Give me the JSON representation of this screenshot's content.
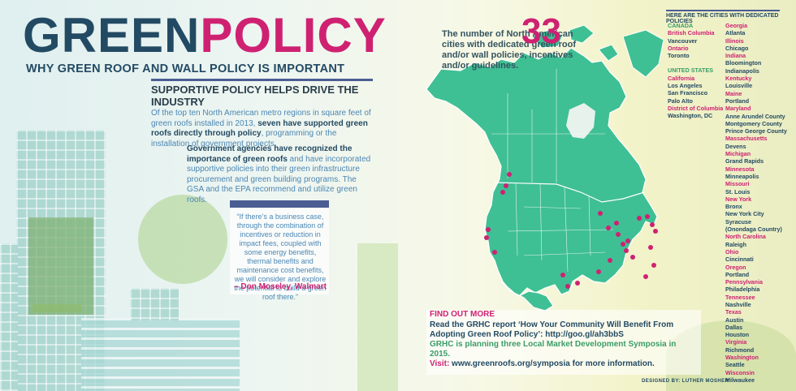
{
  "header": {
    "title_green": "GREEN",
    "title_policy": "POLICY",
    "subtitle": "WHY GREEN ROOF AND WALL POLICY IS IMPORTANT"
  },
  "section": {
    "heading": "SUPPORTIVE POLICY HELPS DRIVE THE INDUSTRY",
    "para1_a": "Of the top ten North American metro regions in square feet of green roofs installed in 2013,",
    "para1_b": "seven have supported green roofs directly through policy",
    "para1_c": ", programming or the installation of government projects.",
    "para2_a": "Government agencies have recognized the importance of green roofs",
    "para2_b": " and have incorporated supportive policies into their green infrastructure procurement and green building programs. The GSA and the EPA recommend and utilize green roofs."
  },
  "quote": {
    "text": "“If there’s a business case, through the combination of incentives or reduction in impact fees, coupled with some energy benefits, thermal benefits and maintenance cost benefits, we will consider and explore the potential to build a green roof there.”",
    "author": "– Don Moseley, Walmart"
  },
  "stat": {
    "number": "33",
    "text": "The number of North American cities with dedicated green roof and/or wall policies, incentives and/or guidelines."
  },
  "cities": {
    "heading": "HERE ARE THE CITIES WITH DEDICATED POLICIES",
    "canada_label": "CANADA",
    "canada": [
      {
        "name": "British Columbia",
        "c": "pink"
      },
      {
        "name": "Vancouver",
        "c": "blue"
      },
      {
        "name": "Ontario",
        "c": "pink"
      },
      {
        "name": "Toronto",
        "c": "blue"
      }
    ],
    "us_label": "UNITED STATES",
    "us_col1": [
      {
        "name": "California",
        "c": "pink"
      },
      {
        "name": "Los Angeles",
        "c": "blue"
      },
      {
        "name": "San Francisco",
        "c": "blue"
      },
      {
        "name": "Palo Alto",
        "c": "blue"
      },
      {
        "name": "District of Columbia",
        "c": "pink"
      },
      {
        "name": "Washington, DC",
        "c": "blue"
      }
    ],
    "us_col2": [
      {
        "name": "Georgia",
        "c": "pink"
      },
      {
        "name": "Atlanta",
        "c": "blue"
      },
      {
        "name": "Illinois",
        "c": "pink"
      },
      {
        "name": "Chicago",
        "c": "blue"
      },
      {
        "name": "Indiana",
        "c": "pink"
      },
      {
        "name": "Bloomington",
        "c": "blue"
      },
      {
        "name": "Indianapolis",
        "c": "blue"
      },
      {
        "name": "Kentucky",
        "c": "pink"
      },
      {
        "name": "Louisville",
        "c": "blue"
      },
      {
        "name": "Maine",
        "c": "pink"
      },
      {
        "name": "Portland",
        "c": "blue"
      },
      {
        "name": "Maryland",
        "c": "pink"
      },
      {
        "name": "Anne Arundel County",
        "c": "blue"
      },
      {
        "name": "Montgomery County",
        "c": "blue"
      },
      {
        "name": "Prince George County",
        "c": "blue"
      },
      {
        "name": "Massachusetts",
        "c": "pink"
      },
      {
        "name": "Devens",
        "c": "blue"
      },
      {
        "name": "Michigan",
        "c": "pink"
      },
      {
        "name": "Grand Rapids",
        "c": "blue"
      },
      {
        "name": "Minnesota",
        "c": "pink"
      },
      {
        "name": "Minneapolis",
        "c": "blue"
      },
      {
        "name": "Missouri",
        "c": "pink"
      },
      {
        "name": "St. Louis",
        "c": "blue"
      },
      {
        "name": "New York",
        "c": "pink"
      },
      {
        "name": "Bronx",
        "c": "blue"
      },
      {
        "name": "New York City",
        "c": "blue"
      },
      {
        "name": "Syracuse",
        "c": "blue"
      },
      {
        "name": "(Onondaga Country)",
        "c": "blue"
      },
      {
        "name": "North Carolina",
        "c": "pink"
      },
      {
        "name": "Raleigh",
        "c": "blue"
      },
      {
        "name": "Ohio",
        "c": "pink"
      },
      {
        "name": "Cincinnati",
        "c": "blue"
      },
      {
        "name": "Oregon",
        "c": "pink"
      },
      {
        "name": "Portland",
        "c": "blue"
      },
      {
        "name": "Pennsylvania",
        "c": "pink"
      },
      {
        "name": "Philadelphia",
        "c": "blue"
      },
      {
        "name": "Tennessee",
        "c": "pink"
      },
      {
        "name": "Nashville",
        "c": "blue"
      },
      {
        "name": "Texas",
        "c": "pink"
      },
      {
        "name": "Austin",
        "c": "blue"
      },
      {
        "name": "Dallas",
        "c": "blue"
      },
      {
        "name": "Houston",
        "c": "blue"
      },
      {
        "name": "Virginia",
        "c": "pink"
      },
      {
        "name": "Richmond",
        "c": "blue"
      },
      {
        "name": "Washington",
        "c": "pink"
      },
      {
        "name": "Seattle",
        "c": "blue"
      },
      {
        "name": "Wisconsin",
        "c": "pink"
      },
      {
        "name": "Milwaukee",
        "c": "blue"
      }
    ]
  },
  "find_out": {
    "heading": "FIND OUT MORE",
    "line1": "Read the GRHC report ‘How Your Community Will Benefit From Adopting Green Roof Policy’: http://goo.gl/ah3bbS",
    "line2": "GRHC is planning three Local Market Development Symposia in 2015.",
    "line3_label": "Visit:",
    "line3_text": " www.greenroofs.org/symposia for more information."
  },
  "credit": "DESIGNED BY: LUTHER MOSHER",
  "colors": {
    "navy": "#234a63",
    "magenta": "#cf2172",
    "map_green": "#3fbf94",
    "body_blue": "#4b86b4"
  }
}
